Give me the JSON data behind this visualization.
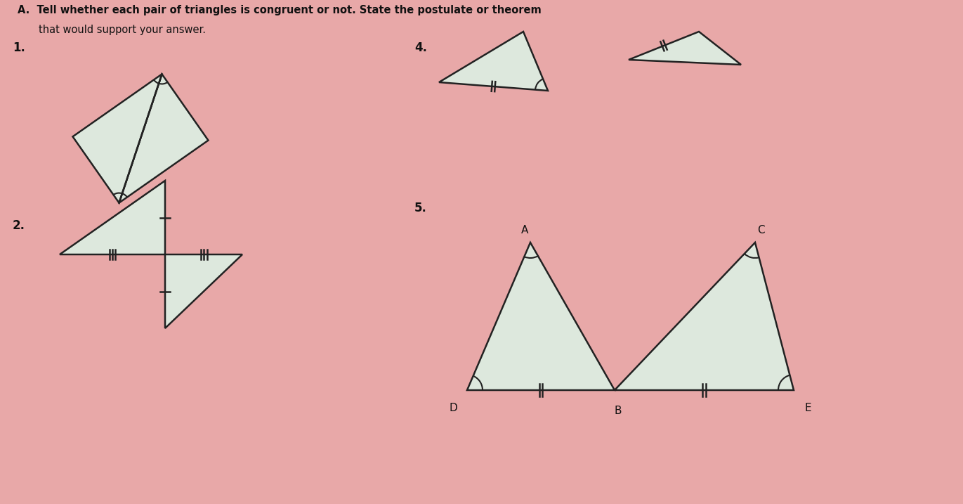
{
  "bg_color": "#e8a8a8",
  "title_line1": "A.  Tell whether each pair of triangles is congruent or not. State the postulate or theorem",
  "title_line2": "that would support your answer.",
  "label1": "1.",
  "label2": "2.",
  "label4": "4.",
  "label5": "5.",
  "triangle_fill": "#dde8dd",
  "triangle_edge": "#222222",
  "text_color": "#111111"
}
